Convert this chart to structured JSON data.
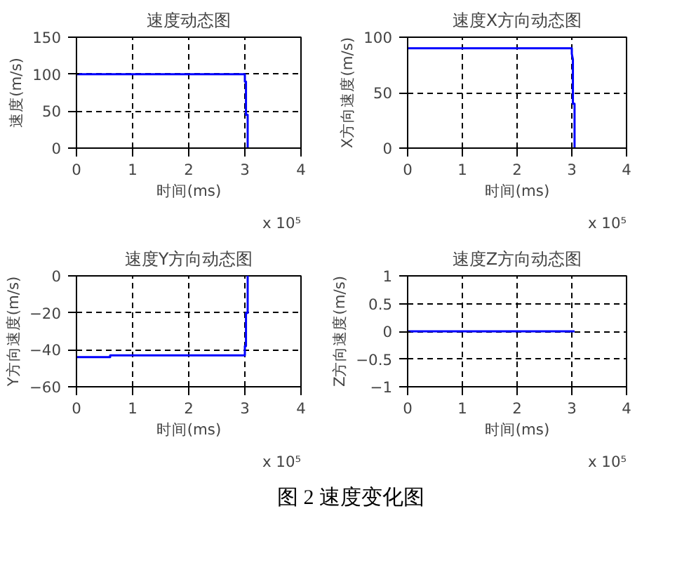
{
  "chart_data": [
    {
      "type": "line",
      "title": "速度动态图",
      "xlabel": "时间(ms)",
      "ylabel": "速度(m/s)",
      "grid": true,
      "line_style": "solid",
      "xlim": [
        0,
        4
      ],
      "ylim": [
        0,
        150
      ],
      "xticks": [
        0,
        1,
        2,
        3,
        4
      ],
      "yticks": [
        0,
        50,
        100,
        150
      ],
      "annotations": [
        "x 10⁵"
      ],
      "series": [
        {
          "color": "#0000ff",
          "x": [
            0,
            3.0,
            3.0,
            3.02,
            3.02,
            3.05,
            3.05
          ],
          "values": [
            100,
            100,
            90,
            90,
            45,
            45,
            0
          ]
        }
      ]
    },
    {
      "type": "line",
      "title": "速度X方向动态图",
      "xlabel": "时间(ms)",
      "ylabel": "X方向速度(m/s)",
      "grid": true,
      "line_style": "solid",
      "xlim": [
        0,
        4
      ],
      "ylim": [
        0,
        100
      ],
      "xticks": [
        0,
        1,
        2,
        3,
        4
      ],
      "yticks": [
        0,
        50,
        100
      ],
      "annotations": [
        "x 10⁵"
      ],
      "series": [
        {
          "color": "#0000ff",
          "x": [
            0,
            3.0,
            3.0,
            3.02,
            3.02,
            3.05,
            3.05
          ],
          "values": [
            90,
            90,
            85,
            80,
            40,
            40,
            0
          ]
        }
      ]
    },
    {
      "type": "line",
      "title": "速度Y方向动态图",
      "xlabel": "时间(ms)",
      "ylabel": "Y方向速度(m/s)",
      "grid": true,
      "line_style": "solid",
      "xlim": [
        0,
        4
      ],
      "ylim": [
        -60,
        0
      ],
      "xticks": [
        0,
        1,
        2,
        3,
        4
      ],
      "yticks": [
        -60,
        -40,
        -20,
        0
      ],
      "annotations": [
        "x 10⁵"
      ],
      "series": [
        {
          "color": "#0000ff",
          "x": [
            0,
            0.6,
            0.6,
            3.0,
            3.0,
            3.02,
            3.02,
            3.05,
            3.05
          ],
          "values": [
            -44,
            -44,
            -43,
            -43,
            -38,
            -38,
            -20,
            -20,
            0
          ]
        }
      ]
    },
    {
      "type": "line",
      "title": "速度Z方向动态图",
      "xlabel": "时间(ms)",
      "ylabel": "Z方向速度(m/s)",
      "grid": true,
      "line_style": "solid",
      "xlim": [
        0,
        4
      ],
      "ylim": [
        -1,
        1
      ],
      "xticks": [
        0,
        1,
        2,
        3,
        4
      ],
      "yticks": [
        -1,
        -0.5,
        0,
        0.5,
        1
      ],
      "annotations": [
        "x 10⁵",
        "图 2  速度变化图"
      ],
      "series": [
        {
          "color": "#0000ff",
          "x": [
            0,
            3.05
          ],
          "values": [
            0,
            0
          ]
        }
      ]
    }
  ]
}
